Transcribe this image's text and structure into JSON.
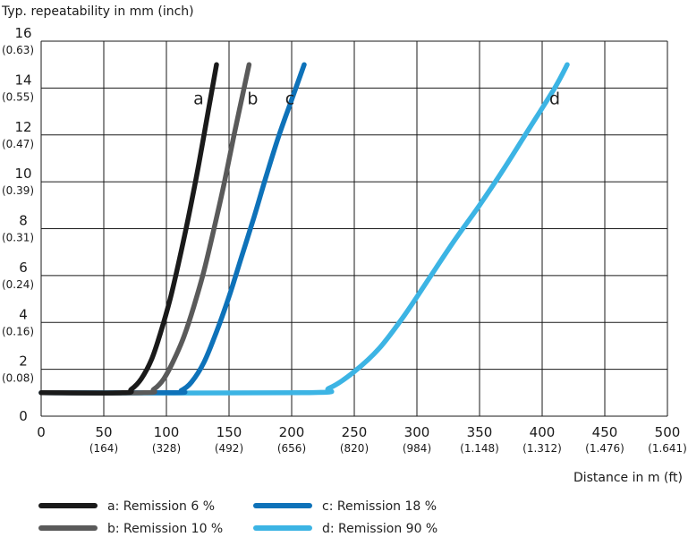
{
  "chart_data": {
    "type": "line",
    "ylabel": "Typ. repeatability in mm (inch)",
    "xlabel": "Distance in m (ft)",
    "xlim": [
      0,
      500
    ],
    "ylim": [
      0,
      16
    ],
    "grid": true,
    "legend_position": "bottom",
    "x_ticks": [
      {
        "value": 0,
        "label": "0",
        "sub": ""
      },
      {
        "value": 50,
        "label": "50",
        "sub": "(164)"
      },
      {
        "value": 100,
        "label": "100",
        "sub": "(328)"
      },
      {
        "value": 150,
        "label": "150",
        "sub": "(492)"
      },
      {
        "value": 200,
        "label": "200",
        "sub": "(656)"
      },
      {
        "value": 250,
        "label": "250",
        "sub": "(820)"
      },
      {
        "value": 300,
        "label": "300",
        "sub": "(984)"
      },
      {
        "value": 350,
        "label": "350",
        "sub": "(1.148)"
      },
      {
        "value": 400,
        "label": "400",
        "sub": "(1.312)"
      },
      {
        "value": 450,
        "label": "450",
        "sub": "(1.476)"
      },
      {
        "value": 500,
        "label": "500",
        "sub": "(1.641)"
      }
    ],
    "y_ticks": [
      {
        "value": 0,
        "label": "0",
        "sub": ""
      },
      {
        "value": 2,
        "label": "2",
        "sub": "(0.08)"
      },
      {
        "value": 4,
        "label": "4",
        "sub": "(0.16)"
      },
      {
        "value": 6,
        "label": "6",
        "sub": "(0.24)"
      },
      {
        "value": 8,
        "label": "8",
        "sub": "(0.31)"
      },
      {
        "value": 10,
        "label": "10",
        "sub": "(0.39)"
      },
      {
        "value": 12,
        "label": "12",
        "sub": "(0.47)"
      },
      {
        "value": 14,
        "label": "14",
        "sub": "(0.55)"
      },
      {
        "value": 16,
        "label": "16",
        "sub": "(0.63)"
      }
    ],
    "series": [
      {
        "name": "a: Remission 6 %",
        "tag": "a",
        "color": "#1a1a1a",
        "x": [
          0,
          65,
          72,
          80,
          88,
          95,
          103,
          110,
          118,
          126,
          134,
          140
        ],
        "y": [
          1,
          1,
          1.15,
          1.6,
          2.4,
          3.5,
          5.0,
          6.6,
          8.6,
          10.8,
          13.2,
          15
        ]
      },
      {
        "name": "b: Remission 10 %",
        "tag": "b",
        "color": "#5a5a5a",
        "x": [
          0,
          82,
          90,
          98,
          106,
          114,
          122,
          130,
          138,
          146,
          154,
          160,
          166
        ],
        "y": [
          1,
          1,
          1.15,
          1.6,
          2.4,
          3.4,
          4.7,
          6.2,
          8.0,
          9.9,
          12.0,
          13.5,
          15
        ]
      },
      {
        "name": "c: Remission 18 %",
        "tag": "c",
        "color": "#0e72b9",
        "x": [
          0,
          105,
          112,
          120,
          130,
          140,
          150,
          160,
          170,
          180,
          190,
          200,
          210
        ],
        "y": [
          1,
          1,
          1.1,
          1.45,
          2.3,
          3.6,
          5.1,
          6.8,
          8.5,
          10.3,
          12.0,
          13.5,
          15
        ]
      },
      {
        "name": "d: Remission 90 %",
        "tag": "d",
        "color": "#3cb4e4",
        "x": [
          0,
          210,
          230,
          250,
          270,
          290,
          310,
          330,
          350,
          370,
          390,
          410,
          420
        ],
        "y": [
          1,
          1,
          1.2,
          1.9,
          2.9,
          4.3,
          5.9,
          7.5,
          9.0,
          10.6,
          12.3,
          14.0,
          15
        ]
      }
    ]
  }
}
